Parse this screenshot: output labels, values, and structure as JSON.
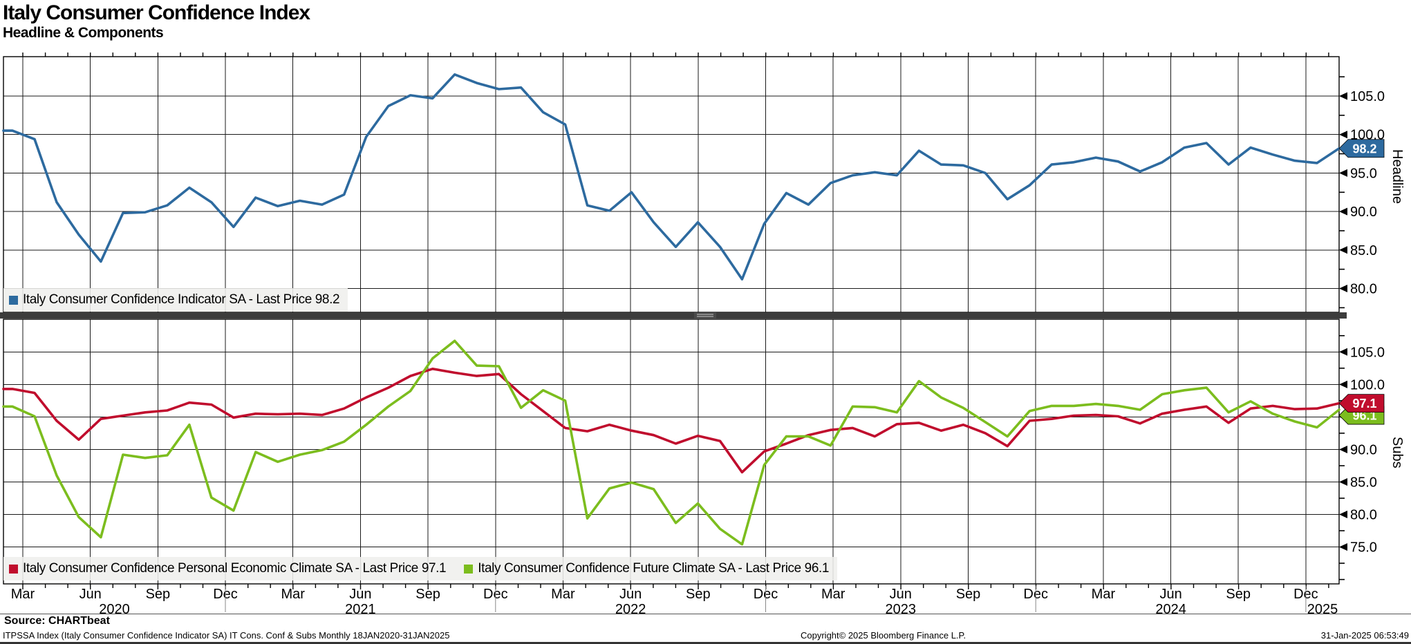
{
  "header": {
    "title": "Italy Consumer Confidence Index",
    "subtitle": "Headline & Components"
  },
  "chart_data": [
    {
      "type": "line",
      "panel": "top",
      "axis_label": "Headline",
      "ylim": [
        77.5,
        110.1
      ],
      "yticks": [
        105.0,
        100.0,
        95.0,
        90.0,
        85.0,
        80.0
      ],
      "grid": true,
      "legend_position": "bottom-left-inside",
      "x_start": "2020-01",
      "x_end": "2025-01",
      "series": [
        {
          "name": "Italy Consumer Confidence Indicator SA - Last Price 98.2",
          "color": "#2d6a9f",
          "last_price": 98.2,
          "values": [
            100.5,
            99.4,
            91.2,
            87.0,
            83.5,
            89.8,
            89.9,
            90.8,
            93.1,
            91.2,
            88.0,
            91.8,
            90.7,
            91.4,
            90.9,
            92.2,
            99.7,
            103.7,
            105.1,
            104.7,
            107.8,
            106.7,
            105.9,
            106.1,
            102.9,
            101.3,
            90.8,
            90.1,
            92.5,
            88.6,
            85.4,
            88.6,
            85.4,
            81.2,
            88.4,
            92.4,
            90.9,
            93.7,
            94.7,
            95.1,
            94.7,
            97.9,
            96.1,
            96.0,
            95.0,
            91.6,
            93.4,
            96.1,
            96.4,
            97.0,
            96.5,
            95.2,
            96.4,
            98.3,
            98.9,
            96.1,
            98.3,
            97.4,
            96.6,
            96.3,
            98.2
          ]
        }
      ]
    },
    {
      "type": "line",
      "panel": "bottom",
      "axis_label": "Subs",
      "ylim": [
        69.3,
        110.0
      ],
      "yticks": [
        105.0,
        100.0,
        95.0,
        90.0,
        85.0,
        80.0,
        75.0
      ],
      "grid": true,
      "legend_position": "bottom-left-inside",
      "x_start": "2020-01",
      "x_end": "2025-01",
      "x_axis": {
        "quarter_labels": [
          "Mar",
          "Jun",
          "Sep",
          "Dec"
        ],
        "years": [
          "2020",
          "2021",
          "2022",
          "2023",
          "2024",
          "2025"
        ]
      },
      "series": [
        {
          "name": "Italy Consumer Confidence Personal Economic Climate SA - Last Price 97.1",
          "color": "#c00d2d",
          "last_price": 97.1,
          "values": [
            99.3,
            98.7,
            94.4,
            91.5,
            94.7,
            95.2,
            95.7,
            96.0,
            97.2,
            96.9,
            94.9,
            95.5,
            95.4,
            95.5,
            95.3,
            96.3,
            98.0,
            99.5,
            101.3,
            102.4,
            101.8,
            101.3,
            101.6,
            98.5,
            95.9,
            93.3,
            92.8,
            93.8,
            92.9,
            92.2,
            90.9,
            92.1,
            91.3,
            86.5,
            89.7,
            90.9,
            92.2,
            93.0,
            93.3,
            92.0,
            93.9,
            94.1,
            92.9,
            93.8,
            92.5,
            90.5,
            94.4,
            94.7,
            95.2,
            95.3,
            95.1,
            94.0,
            95.5,
            96.1,
            96.6,
            94.1,
            96.3,
            96.7,
            96.2,
            96.3,
            97.1
          ]
        },
        {
          "name": "Italy Consumer Confidence Future Climate SA - Last Price 96.1",
          "color": "#7cbd1e",
          "last_price": 96.1,
          "values": [
            96.6,
            95.1,
            86.0,
            79.6,
            76.5,
            89.2,
            88.7,
            89.1,
            93.8,
            82.6,
            80.6,
            89.6,
            88.1,
            89.2,
            89.9,
            91.2,
            93.8,
            96.6,
            99.0,
            104.0,
            106.7,
            102.9,
            102.8,
            96.4,
            99.1,
            97.5,
            79.4,
            84.0,
            84.9,
            83.9,
            78.7,
            81.7,
            77.8,
            75.4,
            87.6,
            92.0,
            92.0,
            90.6,
            96.6,
            96.5,
            95.7,
            100.5,
            98.0,
            96.4,
            94.2,
            92.0,
            95.9,
            96.7,
            96.7,
            97.0,
            96.7,
            96.1,
            98.5,
            99.1,
            99.5,
            95.7,
            97.4,
            95.5,
            94.3,
            93.4,
            96.1
          ]
        }
      ]
    }
  ],
  "footer": {
    "source": "Source: CHARTbeat",
    "description": "ITPSSA Index (Italy Consumer Confidence Indicator SA) IT Cons. Conf & Subs  Monthly 18JAN2020-31JAN2025",
    "copyright": "Copyright© 2025 Bloomberg Finance L.P.",
    "timestamp": "31-Jan-2025 06:53:49"
  }
}
